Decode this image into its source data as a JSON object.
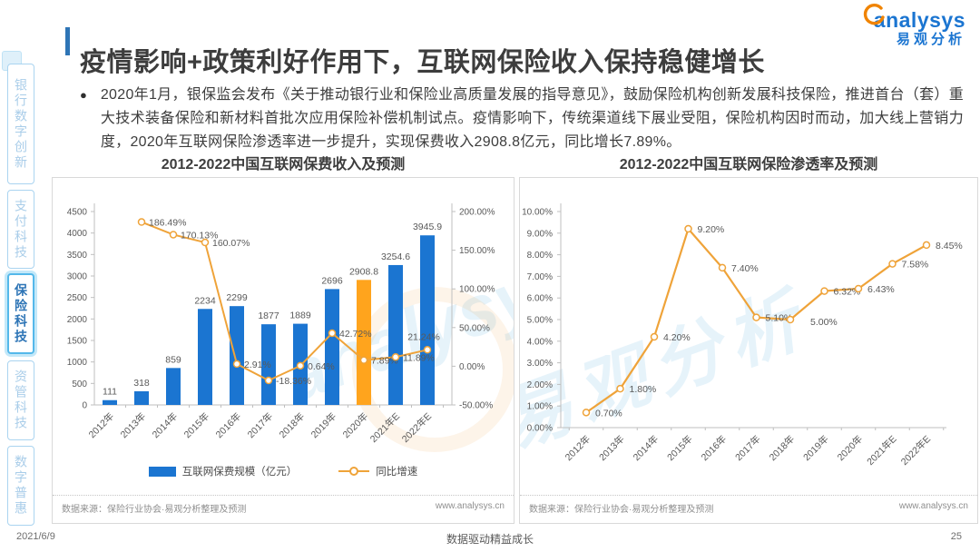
{
  "page": {
    "title": "疫情影响+政策利好作用下，互联网保险收入保持稳健增长",
    "bullet": "●",
    "bullet_text": "2020年1月，银保监会发布《关于推动银行业和保险业高质量发展的指导意见》，鼓励保险机构创新发展科技保险，推进首台（套）重大技术装备保险和新材料首批次应用保险补偿机制试点。疫情影响下，传统渠道线下展业受阻，保险机构因时而动，加大线上营销力度，2020年互联网保险渗透率进一步提升，实现保费收入2908.8亿元，同比增长7.89%。",
    "logo": {
      "brand": "analysys",
      "brand_cn": "易观分析"
    },
    "watermark": {
      "left_panel": "analysys",
      "right_panel": "易观分析"
    },
    "footer": {
      "date": "2021/6/9",
      "slogan": "数据驱动精益成长",
      "page_number": "25"
    }
  },
  "sidebar": {
    "items": [
      {
        "label": "银行数字创新",
        "active": false
      },
      {
        "label": "支付科技",
        "active": false
      },
      {
        "label": "保险科技",
        "active": true
      },
      {
        "label": "资管科技",
        "active": false
      },
      {
        "label": "数字普惠",
        "active": false
      }
    ]
  },
  "colors": {
    "accent_blue": "#2e75b6",
    "bar_blue": "#1b75d1",
    "bar_highlight_orange": "#ffa41d",
    "line_orange": "#efa339",
    "brand_blue": "#1b75d1",
    "brand_orange": "#f08300",
    "axis_gray": "#bfbfbf",
    "label_gray": "#595959"
  },
  "chart_data": [
    {
      "type": "bar",
      "title": "2012-2022中国互联网保费收入及预测",
      "categories": [
        "2012年",
        "2013年",
        "2014年",
        "2015年",
        "2016年",
        "2017年",
        "2018年",
        "2019年",
        "2020年",
        "2021年E",
        "2022年E"
      ],
      "series": [
        {
          "name": "互联网保费规模（亿元）",
          "type": "bar",
          "values": [
            111,
            318,
            859,
            2234,
            2299,
            1877,
            1889,
            2696,
            2908.8,
            3254.6,
            3945.9
          ],
          "labels": [
            "111",
            "318",
            "859",
            "2234",
            "2299",
            "1877",
            "1889",
            "2696",
            "2908.8",
            "3254.6",
            "3945.9"
          ],
          "color": "#1b75d1",
          "highlight_index": 8,
          "highlight_color": "#ffa41d"
        },
        {
          "name": "同比增速",
          "type": "line",
          "values": [
            null,
            186.49,
            170.13,
            160.07,
            2.91,
            -18.36,
            0.64,
            42.72,
            7.89,
            11.89,
            21.24
          ],
          "labels": [
            null,
            "186.49%",
            "170.13%",
            "160.07%",
            "2.91%",
            "-18.36%",
            "0.64%",
            "42.72%",
            "7.89%",
            "11.89%",
            "21.24%"
          ],
          "color": "#efa339"
        }
      ],
      "left_axis": {
        "min": 0,
        "max": 4500,
        "step": 500,
        "ticks": [
          "4500",
          "4000",
          "3500",
          "3000",
          "2500",
          "2000",
          "1500",
          "1000",
          "500",
          "0"
        ]
      },
      "right_axis": {
        "min": -50,
        "max": 200,
        "step": 50,
        "ticks": [
          "200.00%",
          "150.00%",
          "100.00%",
          "50.00%",
          "0.00%",
          "-50.00%"
        ]
      },
      "legend_position": "bottom",
      "grid": false,
      "source": "数据来源：保险行业协会·易观分析整理及预测",
      "url": "www.analysys.cn"
    },
    {
      "type": "line",
      "title": "2012-2022中国互联网保险渗透率及预测",
      "categories": [
        "2012年",
        "2013年",
        "2014年",
        "2015年",
        "2016年",
        "2017年",
        "2018年",
        "2019年",
        "2020年",
        "2021年E",
        "2022年E"
      ],
      "series": [
        {
          "name": "互联网保险渗透率",
          "type": "line",
          "values": [
            0.7,
            1.8,
            4.2,
            9.2,
            7.4,
            5.1,
            5.0,
            6.32,
            6.43,
            7.58,
            8.45
          ],
          "labels": [
            "0.70%",
            "1.80%",
            "4.20%",
            "9.20%",
            "7.40%",
            "5.10%",
            "5.00%",
            "6.32%",
            "6.43%",
            "7.58%",
            "8.45%"
          ],
          "color": "#efa339"
        }
      ],
      "left_axis": {
        "min": 0,
        "max": 10,
        "step": 1,
        "ticks": [
          "10.00%",
          "9.00%",
          "8.00%",
          "7.00%",
          "6.00%",
          "5.00%",
          "4.00%",
          "3.00%",
          "2.00%",
          "1.00%",
          "0.00%"
        ]
      },
      "grid": false,
      "source": "数据来源：保险行业协会·易观分析整理及预测",
      "url": "www.analysys.cn"
    }
  ]
}
